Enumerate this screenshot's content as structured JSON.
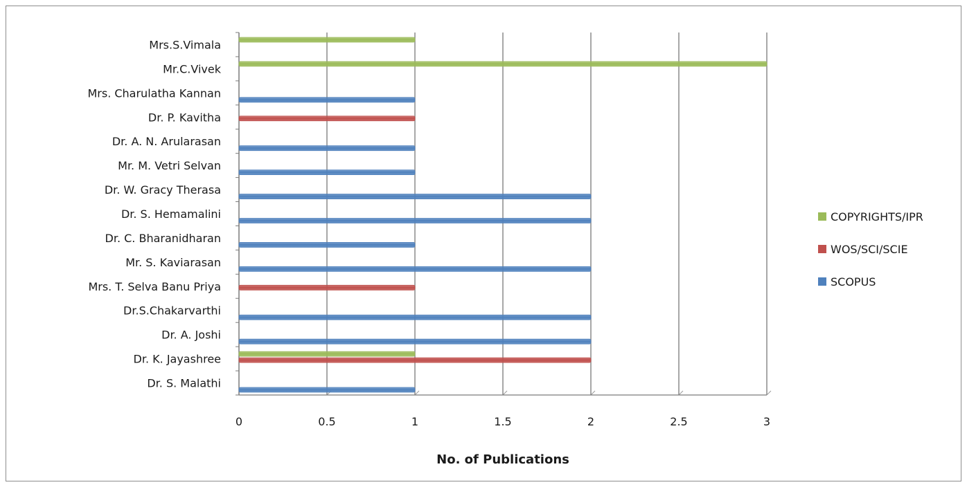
{
  "chart_data": {
    "type": "bar",
    "orientation": "horizontal",
    "title": "",
    "xlabel": "No. of Publications",
    "ylabel": "",
    "xlim": [
      0,
      3
    ],
    "x_ticks": [
      "0",
      "0.5",
      "1",
      "1.5",
      "2",
      "2.5",
      "3"
    ],
    "grid": "vertical gridlines on",
    "legend_position": "right",
    "categories": [
      "Dr. S. Malathi",
      "Dr. K. Jayashree",
      "Dr. A. Joshi",
      "Dr.S.Chakarvarthi",
      "Mrs. T. Selva Banu Priya",
      "Mr. S. Kaviarasan",
      "Dr. C. Bharanidharan",
      "Dr. S. Hemamalini",
      "Dr. W. Gracy Therasa",
      "Mr. M. Vetri Selvan",
      "Dr. A. N. Arularasan",
      "Dr.  P. Kavitha",
      "Mrs. Charulatha Kannan",
      "Mr.C.Vivek",
      "Mrs.S.Vimala"
    ],
    "series": [
      {
        "name": "SCOPUS",
        "color": "#4f81bd",
        "values": [
          1,
          0,
          2,
          2,
          0,
          2,
          1,
          2,
          2,
          1,
          1,
          0,
          1,
          0,
          0
        ]
      },
      {
        "name": "WOS/SCI/SCIE",
        "color": "#c0504d",
        "values": [
          0,
          2,
          0,
          0,
          1,
          0,
          0,
          0,
          0,
          0,
          0,
          1,
          0,
          0,
          0
        ]
      },
      {
        "name": "COPYRIGHTS/IPR",
        "color": "#9bbb59",
        "values": [
          0,
          1,
          0,
          0,
          0,
          0,
          0,
          0,
          0,
          0,
          0,
          0,
          0,
          3,
          1
        ]
      }
    ],
    "legend_order": [
      "COPYRIGHTS/IPR",
      "WOS/SCI/SCIE",
      "SCOPUS"
    ]
  }
}
